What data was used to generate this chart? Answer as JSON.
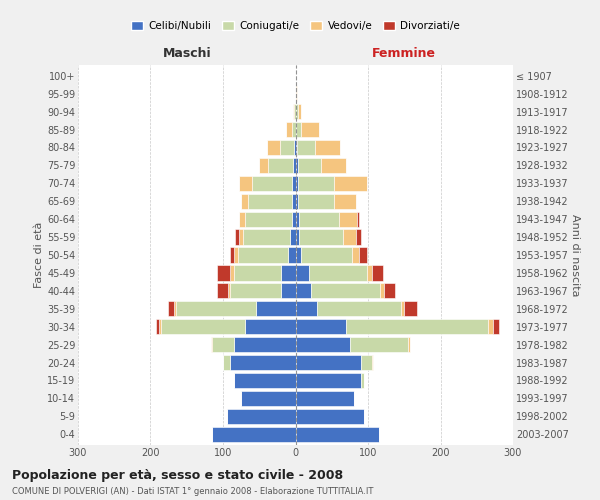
{
  "age_groups": [
    "0-4",
    "5-9",
    "10-14",
    "15-19",
    "20-24",
    "25-29",
    "30-34",
    "35-39",
    "40-44",
    "45-49",
    "50-54",
    "55-59",
    "60-64",
    "65-69",
    "70-74",
    "75-79",
    "80-84",
    "85-89",
    "90-94",
    "95-99",
    "100+"
  ],
  "birth_years": [
    "2003-2007",
    "1998-2002",
    "1993-1997",
    "1988-1992",
    "1983-1987",
    "1978-1982",
    "1973-1977",
    "1968-1972",
    "1963-1967",
    "1958-1962",
    "1953-1957",
    "1948-1952",
    "1943-1947",
    "1938-1942",
    "1933-1937",
    "1928-1932",
    "1923-1927",
    "1918-1922",
    "1913-1917",
    "1908-1912",
    "≤ 1907"
  ],
  "maschi": {
    "celibi": [
      115,
      95,
      75,
      85,
      90,
      85,
      70,
      55,
      20,
      20,
      10,
      8,
      5,
      5,
      5,
      3,
      2,
      0,
      0,
      0,
      0
    ],
    "coniugati": [
      0,
      0,
      0,
      0,
      10,
      30,
      115,
      110,
      70,
      65,
      70,
      65,
      65,
      60,
      55,
      35,
      20,
      5,
      2,
      0,
      0
    ],
    "vedovi": [
      0,
      0,
      0,
      0,
      0,
      2,
      3,
      3,
      3,
      5,
      5,
      5,
      8,
      10,
      18,
      12,
      18,
      8,
      2,
      0,
      0
    ],
    "divorziati": [
      0,
      0,
      0,
      0,
      0,
      0,
      5,
      8,
      15,
      18,
      5,
      5,
      0,
      0,
      0,
      0,
      0,
      0,
      0,
      0,
      0
    ]
  },
  "femmine": {
    "nubili": [
      115,
      95,
      80,
      90,
      90,
      75,
      70,
      30,
      22,
      18,
      8,
      5,
      5,
      3,
      3,
      3,
      2,
      0,
      0,
      0,
      0
    ],
    "coniugate": [
      0,
      0,
      0,
      5,
      15,
      80,
      195,
      115,
      95,
      80,
      70,
      60,
      55,
      50,
      50,
      32,
      25,
      8,
      3,
      0,
      0
    ],
    "vedove": [
      0,
      0,
      0,
      0,
      2,
      3,
      8,
      5,
      5,
      8,
      10,
      18,
      25,
      30,
      45,
      35,
      35,
      25,
      5,
      2,
      0
    ],
    "divorziate": [
      0,
      0,
      0,
      0,
      0,
      0,
      8,
      18,
      15,
      15,
      10,
      8,
      3,
      0,
      0,
      0,
      0,
      0,
      0,
      0,
      0
    ]
  },
  "colors": {
    "celibi": "#4472c4",
    "coniugati": "#c8d9a8",
    "vedovi": "#f5c57f",
    "divorziati": "#c0392b"
  },
  "xlim": 300,
  "title": "Popolazione per età, sesso e stato civile - 2008",
  "subtitle": "COMUNE DI POLVERIGI (AN) - Dati ISTAT 1° gennaio 2008 - Elaborazione TUTTITALIA.IT",
  "ylabel_left": "Fasce di età",
  "ylabel_right": "Anni di nascita",
  "legend_labels": [
    "Celibi/Nubili",
    "Coniugati/e",
    "Vedovi/e",
    "Divorziati/e"
  ],
  "bg_color": "#f0f0f0",
  "plot_bg": "#ffffff",
  "bar_height": 0.85,
  "maschi_header_color": "#333333",
  "femmine_header_color": "#cc2222"
}
